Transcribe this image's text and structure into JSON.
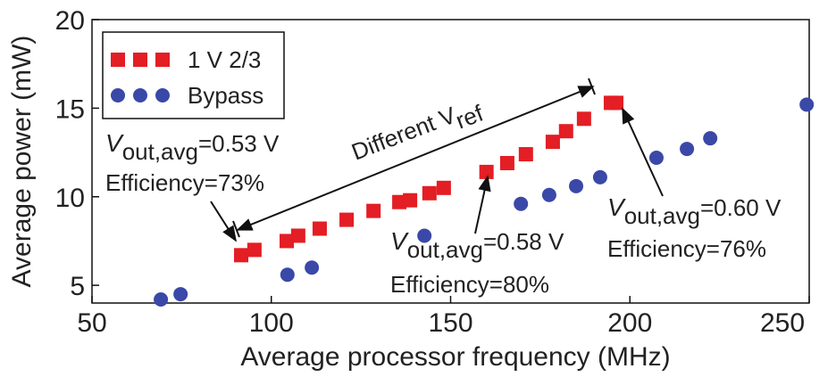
{
  "chart_data": {
    "type": "scatter",
    "x_label": "Average processor frequency (MHz)",
    "y_label": "Average power (mW)",
    "xlim": [
      50,
      250
    ],
    "xticks": [
      50,
      100,
      150,
      200,
      250
    ],
    "ylim": [
      4,
      20
    ],
    "yticks": [
      5,
      10,
      15,
      20
    ],
    "legend_position": "upper left",
    "series": [
      {
        "name": "1 V 2/3",
        "color": "#e31e24",
        "marker": "square",
        "x": [
          91.6,
          95.3,
          104.3,
          107.5,
          113.5,
          121,
          128.5,
          135.7,
          138.7,
          144.1,
          148.1,
          160,
          165.8,
          171,
          178.5,
          182.2,
          187.2,
          194.7,
          196.2
        ],
        "values": [
          6.7,
          7.0,
          7.5,
          7.8,
          8.2,
          8.7,
          9.2,
          9.7,
          9.8,
          10.2,
          10.5,
          11.4,
          11.9,
          12.4,
          13.1,
          13.7,
          14.4,
          15.3,
          15.3
        ]
      },
      {
        "name": "Bypass",
        "color": "#3a48a8",
        "marker": "circle",
        "x": [
          69.2,
          74.7,
          104.5,
          111.3,
          142.7,
          169.6,
          177.5,
          185,
          191.7,
          207.4,
          215.9,
          222.4,
          249.3
        ],
        "values": [
          4.2,
          4.5,
          5.6,
          6.0,
          7.8,
          9.6,
          10.1,
          10.6,
          11.1,
          12.2,
          12.7,
          13.3,
          15.2
        ]
      }
    ],
    "annotations": [
      {
        "symbol": "V",
        "subscript": "out,avg",
        "text": "=0.53 V",
        "note": "Efficiency=73%"
      },
      {
        "symbol": "V",
        "subscript": "out,avg",
        "text": "=0.58 V",
        "note": "Efficiency=80%"
      },
      {
        "symbol": "V",
        "subscript": "out,avg",
        "text": "=0.60 V",
        "note": "Efficiency=76%"
      }
    ],
    "range_annotation": {
      "text": "Different V",
      "subscript": "ref"
    }
  }
}
